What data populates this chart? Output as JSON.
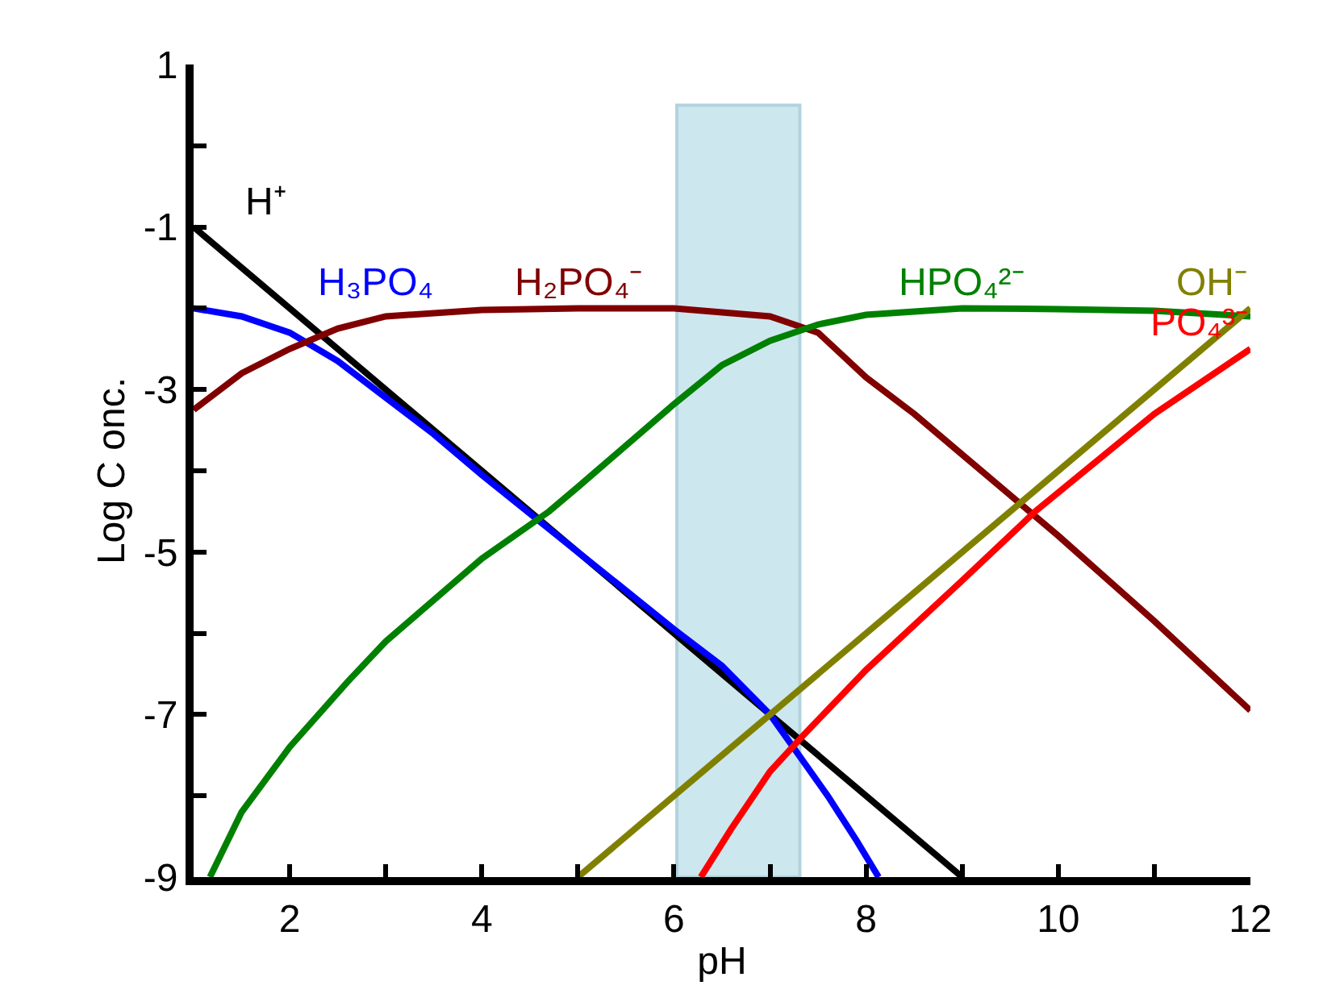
{
  "chart_data": {
    "type": "line",
    "xlabel": "pH",
    "ylabel": "Log C onc.",
    "xlim": [
      1,
      12
    ],
    "xticks": [
      2,
      {
        "value": 3,
        "label": null
      },
      4,
      {
        "value": 5,
        "label": null
      },
      6,
      {
        "value": 7,
        "label": null
      },
      8,
      {
        "value": 9,
        "label": null
      },
      10,
      {
        "value": 11,
        "label": null
      },
      12
    ],
    "ylim": [
      -9,
      1
    ],
    "yticks": [
      -9,
      {
        "value": -8,
        "label": null
      },
      -7,
      {
        "value": -6,
        "label": null
      },
      -5,
      {
        "value": -4,
        "label": null
      },
      -3,
      {
        "value": -2,
        "label": null
      },
      -1,
      {
        "value": 0,
        "label": null
      },
      1
    ],
    "grid": false,
    "marker": "none",
    "line_style": "solid",
    "bands": [
      {
        "axis": "x",
        "from": 6.03,
        "to": 7.31,
        "color": "#add8e6"
      }
    ],
    "series": [
      {
        "name": "H⁺",
        "color": "#000000",
        "x": [
          1,
          9
        ],
        "values": [
          -1,
          -9
        ]
      },
      {
        "name": "H₃PO₄",
        "color": "#0000ff",
        "x": [
          1,
          1.5,
          2,
          2.5,
          3,
          3.5,
          4,
          5,
          6,
          6.5,
          7,
          7.3,
          7.6,
          7.9,
          8.13
        ],
        "values": [
          -2,
          -2.1,
          -2.3,
          -2.65,
          -3.1,
          -3.55,
          -4.05,
          -5,
          -5.95,
          -6.4,
          -7,
          -7.5,
          -8,
          -8.55,
          -9
        ]
      },
      {
        "name": "H₂PO₄⁻",
        "color": "#800000",
        "x": [
          1,
          1.5,
          2,
          2.5,
          3,
          4,
          5,
          6,
          7,
          7.5,
          8,
          8.5,
          9,
          9.5,
          10,
          11,
          12
        ],
        "values": [
          -3.25,
          -2.8,
          -2.5,
          -2.25,
          -2.1,
          -2.02,
          -2,
          -2,
          -2.1,
          -2.3,
          -2.85,
          -3.3,
          -3.8,
          -4.3,
          -4.8,
          -5.85,
          -6.95
        ]
      },
      {
        "name": "HPO₄²⁻",
        "color": "#008000",
        "x": [
          1.17,
          1.5,
          2,
          2.6,
          3,
          4,
          4.7,
          5,
          6,
          6.5,
          7,
          7.5,
          8,
          9,
          10,
          11,
          12
        ],
        "values": [
          -9,
          -8.2,
          -7.4,
          -6.6,
          -6.1,
          -5.08,
          -4.5,
          -4.2,
          -3.18,
          -2.7,
          -2.4,
          -2.2,
          -2.08,
          -2,
          -2.01,
          -2.03,
          -2.1
        ]
      },
      {
        "name": "OH⁻",
        "color": "#808000",
        "x": [
          5,
          12
        ],
        "values": [
          -9,
          -2
        ]
      },
      {
        "name": "PO₄³⁻",
        "color": "#ff0000",
        "x": [
          6.28,
          6.6,
          7,
          7.35,
          8,
          9,
          9.77,
          11,
          12
        ],
        "values": [
          -9,
          -8.4,
          -7.7,
          -7.25,
          -6.45,
          -5.35,
          -4.49,
          -3.3,
          -2.5
        ]
      }
    ]
  }
}
